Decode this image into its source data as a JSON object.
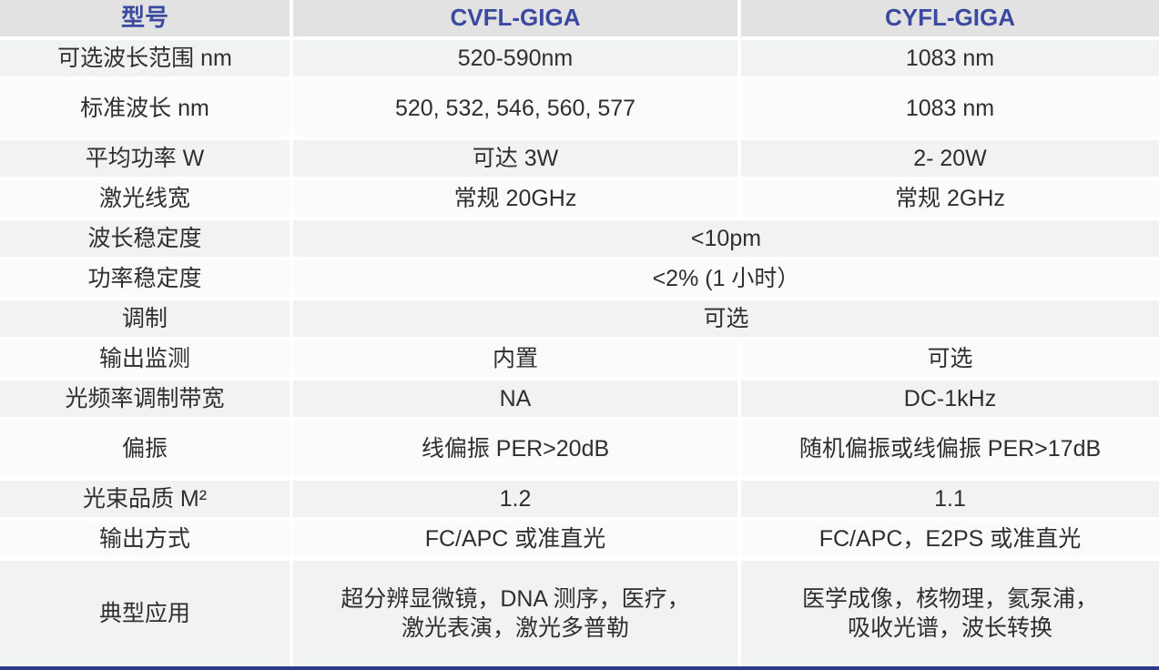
{
  "colors": {
    "brand_navy": "#3b49a0",
    "bottom_bar_navy": "#2c3a8e",
    "header_bg": "#e2e2e2",
    "row_gray": "#f1f2f2",
    "row_light": "#fafbfb",
    "body_text": "#2f2f2f"
  },
  "header": {
    "model_col": "型号",
    "cvfl_col": "CVFL-GIGA",
    "cyfl_col": "CYFL-GIGA"
  },
  "rows": [
    {
      "label": "可选波长范围 nm",
      "cvfl": "520-590nm",
      "cyfl": "1083 nm",
      "shade": "gray",
      "row_type": "normal"
    },
    {
      "label": "标准波长 nm",
      "cvfl": "520, 532, 546, 560, 577",
      "cyfl": "1083 nm",
      "shade": "light",
      "row_type": "tall"
    },
    {
      "label": "平均功率 W",
      "cvfl": "可达 3W",
      "cyfl": "2- 20W",
      "shade": "gray",
      "row_type": "normal"
    },
    {
      "label": "激光线宽",
      "cvfl": "常规 20GHz",
      "cyfl": "常规 2GHz",
      "shade": "light",
      "row_type": "normal"
    },
    {
      "label": "波长稳定度",
      "merged": "<10pm",
      "shade": "gray",
      "row_type": "normal"
    },
    {
      "label": "功率稳定度",
      "merged": "<2% (1 小时）",
      "shade": "light",
      "row_type": "normal"
    },
    {
      "label": "调制",
      "merged": "可选",
      "shade": "gray",
      "row_type": "normal"
    },
    {
      "label": "输出监测",
      "cvfl": "内置",
      "cyfl": "可选",
      "shade": "light",
      "row_type": "normal"
    },
    {
      "label": "光频率调制带宽",
      "cvfl": "NA",
      "cyfl": "DC-1kHz",
      "shade": "gray",
      "row_type": "normal"
    },
    {
      "label": "偏振",
      "cvfl": "线偏振 PER>20dB",
      "cyfl": "随机偏振或线偏振 PER>17dB",
      "shade": "light",
      "row_type": "tall"
    },
    {
      "label": "光束品质 M²",
      "cvfl": "1.2",
      "cyfl": "1.1",
      "shade": "gray",
      "row_type": "normal"
    },
    {
      "label": "输出方式",
      "cvfl": "FC/APC 或准直光",
      "cyfl": "FC/APC，E2PS 或准直光",
      "shade": "light",
      "row_type": "normal"
    },
    {
      "label": "典型应用",
      "cvfl": "超分辨显微镜，DNA 测序，医疗，\n激光表演，激光多普勒",
      "cyfl": "医学成像，核物理，氦泵浦，\n吸收光谱，波长转换",
      "shade": "gray",
      "row_type": "double"
    }
  ]
}
